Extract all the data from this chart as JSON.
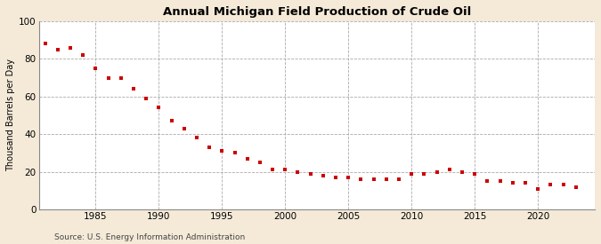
{
  "title": "Annual Michigan Field Production of Crude Oil",
  "ylabel": "Thousand Barrels per Day",
  "source": "Source: U.S. Energy Information Administration",
  "background_color": "#f5ead8",
  "plot_background_color": "#ffffff",
  "marker_color": "#cc0000",
  "marker": "s",
  "markersize": 3.5,
  "ylim": [
    0,
    100
  ],
  "yticks": [
    0,
    20,
    40,
    60,
    80,
    100
  ],
  "xticks": [
    1985,
    1990,
    1995,
    2000,
    2005,
    2010,
    2015,
    2020
  ],
  "xlim": [
    1980.5,
    2024.5
  ],
  "years": [
    1981,
    1982,
    1983,
    1984,
    1985,
    1986,
    1987,
    1988,
    1989,
    1990,
    1991,
    1992,
    1993,
    1994,
    1995,
    1996,
    1997,
    1998,
    1999,
    2000,
    2001,
    2002,
    2003,
    2004,
    2005,
    2006,
    2007,
    2008,
    2009,
    2010,
    2011,
    2012,
    2013,
    2014,
    2015,
    2016,
    2017,
    2018,
    2019,
    2020,
    2021,
    2022,
    2023
  ],
  "values": [
    88,
    85,
    86,
    82,
    75,
    70,
    70,
    64,
    59,
    54,
    47,
    43,
    38,
    33,
    31,
    30,
    27,
    25,
    21,
    21,
    20,
    19,
    18,
    17,
    17,
    16,
    16,
    16,
    16,
    19,
    19,
    20,
    21,
    20,
    19,
    15,
    15,
    14,
    14,
    11,
    13,
    13,
    12
  ],
  "grid_color": "#aaaaaa",
  "grid_linestyle": "--",
  "grid_linewidth": 0.6,
  "title_fontsize": 9.5,
  "ylabel_fontsize": 7,
  "tick_fontsize": 7.5,
  "source_fontsize": 6.5
}
